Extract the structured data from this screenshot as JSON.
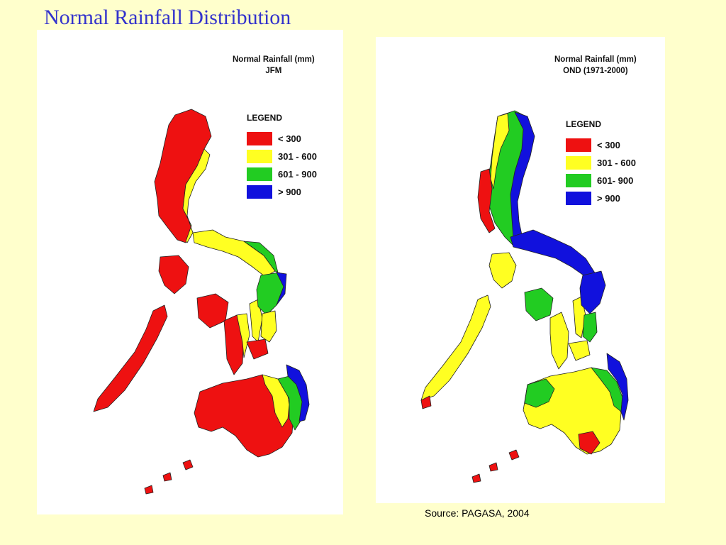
{
  "slide": {
    "title": "Normal Rainfall Distribution"
  },
  "colors": {
    "background": "#ffffcc",
    "title": "#3333cc",
    "lt300": "#ee1111",
    "r301_600": "#ffff22",
    "r601_900": "#22cc22",
    "gt900": "#1111dd"
  },
  "maps": [
    {
      "title_line1": "Normal Rainfall (mm)",
      "title_line2": "JFM",
      "legend": {
        "heading": "LEGEND",
        "items": [
          {
            "label": "< 300",
            "color": "#ee1111"
          },
          {
            "label": "301 - 600",
            "color": "#ffff22"
          },
          {
            "label": "601 - 900",
            "color": "#22cc22"
          },
          {
            "label": "> 900",
            "color": "#1111dd"
          }
        ]
      }
    },
    {
      "title_line1": "Normal Rainfall (mm)",
      "title_line2": "OND (1971-2000)",
      "legend": {
        "heading": "LEGEND",
        "items": [
          {
            "label": "< 300",
            "color": "#ee1111"
          },
          {
            "label": "301 - 600",
            "color": "#ffff22"
          },
          {
            "label": "601- 900",
            "color": "#22cc22"
          },
          {
            "label": "> 900",
            "color": "#1111dd"
          }
        ]
      }
    }
  ],
  "source": "Source: PAGASA, 2004"
}
